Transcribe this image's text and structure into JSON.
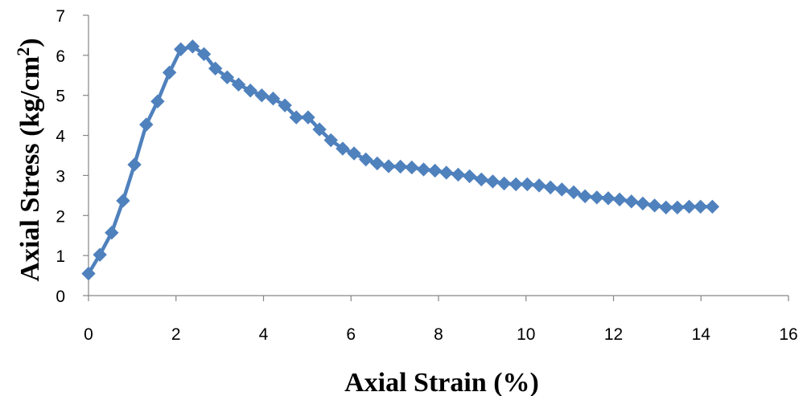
{
  "chart_data": {
    "type": "line",
    "title": "",
    "xlabel": "Axial Strain (%)",
    "ylabel_main": "Axial Stress (kg/cm",
    "ylabel_sup": "2",
    "ylabel_end": ")",
    "xlim": [
      0,
      16
    ],
    "ylim": [
      0,
      7
    ],
    "xticks": [
      "0",
      "2",
      "4",
      "6",
      "8",
      "10",
      "12",
      "14",
      "16"
    ],
    "yticks": [
      "0",
      "1",
      "2",
      "3",
      "4",
      "5",
      "6",
      "7"
    ],
    "grid": false,
    "legend": "none",
    "series": [
      {
        "color": "#4F81BD",
        "marker": "diamond",
        "x": [
          0.0,
          0.26,
          0.53,
          0.79,
          1.05,
          1.32,
          1.58,
          1.85,
          2.11,
          2.38,
          2.64,
          2.9,
          3.17,
          3.43,
          3.7,
          3.96,
          4.22,
          4.49,
          4.75,
          5.02,
          5.28,
          5.54,
          5.81,
          6.07,
          6.34,
          6.6,
          6.86,
          7.13,
          7.39,
          7.66,
          7.92,
          8.18,
          8.45,
          8.71,
          8.98,
          9.24,
          9.5,
          9.77,
          10.03,
          10.3,
          10.56,
          10.82,
          11.09,
          11.35,
          11.62,
          11.88,
          12.14,
          12.41,
          12.67,
          12.94,
          13.2,
          13.46,
          13.73,
          13.99,
          14.26
        ],
        "y": [
          0.55,
          1.02,
          1.57,
          2.37,
          3.27,
          4.27,
          4.85,
          5.57,
          6.15,
          6.22,
          6.03,
          5.67,
          5.45,
          5.27,
          5.12,
          5.0,
          4.92,
          4.75,
          4.45,
          4.45,
          4.15,
          3.88,
          3.67,
          3.55,
          3.4,
          3.3,
          3.23,
          3.22,
          3.2,
          3.15,
          3.12,
          3.07,
          3.02,
          2.98,
          2.9,
          2.85,
          2.8,
          2.78,
          2.78,
          2.75,
          2.7,
          2.65,
          2.58,
          2.48,
          2.45,
          2.43,
          2.4,
          2.35,
          2.3,
          2.25,
          2.2,
          2.2,
          2.22,
          2.22,
          2.22
        ]
      }
    ]
  }
}
